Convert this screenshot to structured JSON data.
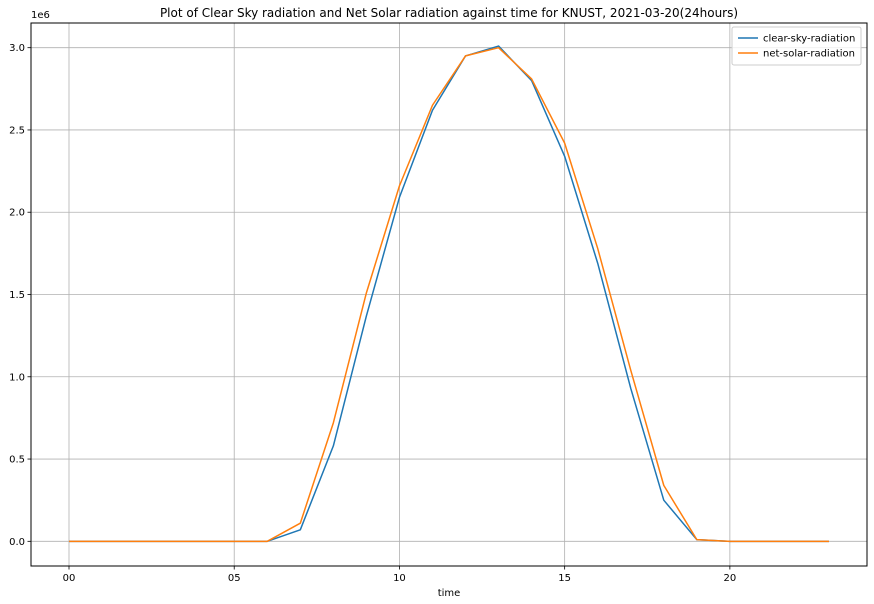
{
  "chart_data": {
    "type": "line",
    "title": "Plot of Clear Sky radiation and Net Solar radiation against time for KNUST, 2021-03-20(24hours)",
    "xlabel": "time",
    "ylabel": "",
    "y_offset_label": "1e6",
    "x": [
      0,
      1,
      2,
      3,
      4,
      5,
      6,
      7,
      8,
      9,
      10,
      11,
      12,
      13,
      14,
      15,
      16,
      17,
      18,
      19,
      20,
      21,
      22,
      23
    ],
    "xlim": [
      -1.15,
      24.15
    ],
    "ylim": [
      -0.15,
      3.15
    ],
    "x_ticks": [
      0,
      5,
      10,
      15,
      20
    ],
    "x_tick_labels": [
      "00",
      "05",
      "10",
      "15",
      "20"
    ],
    "y_ticks": [
      0,
      0.5,
      1.0,
      1.5,
      2.0,
      2.5,
      3.0
    ],
    "y_tick_labels": [
      "0.0",
      "0.5",
      "1.0",
      "1.5",
      "2.0",
      "2.5",
      "3.0"
    ],
    "grid": true,
    "legend_position": "top-right",
    "series": [
      {
        "name": "clear-sky-radiation",
        "color": "#1f77b4",
        "values": [
          0,
          0,
          0,
          0,
          0,
          0,
          0,
          0.07,
          0.58,
          1.37,
          2.09,
          2.62,
          2.95,
          3.01,
          2.8,
          2.34,
          1.69,
          0.93,
          0.25,
          0.01,
          0,
          0,
          0,
          0
        ]
      },
      {
        "name": "net-solar-radiation",
        "color": "#ff7f0e",
        "values": [
          0,
          0,
          0,
          0,
          0,
          0,
          0,
          0.11,
          0.72,
          1.51,
          2.16,
          2.65,
          2.95,
          3.0,
          2.81,
          2.42,
          1.78,
          1.04,
          0.34,
          0.01,
          0,
          0,
          0,
          0
        ]
      }
    ]
  }
}
